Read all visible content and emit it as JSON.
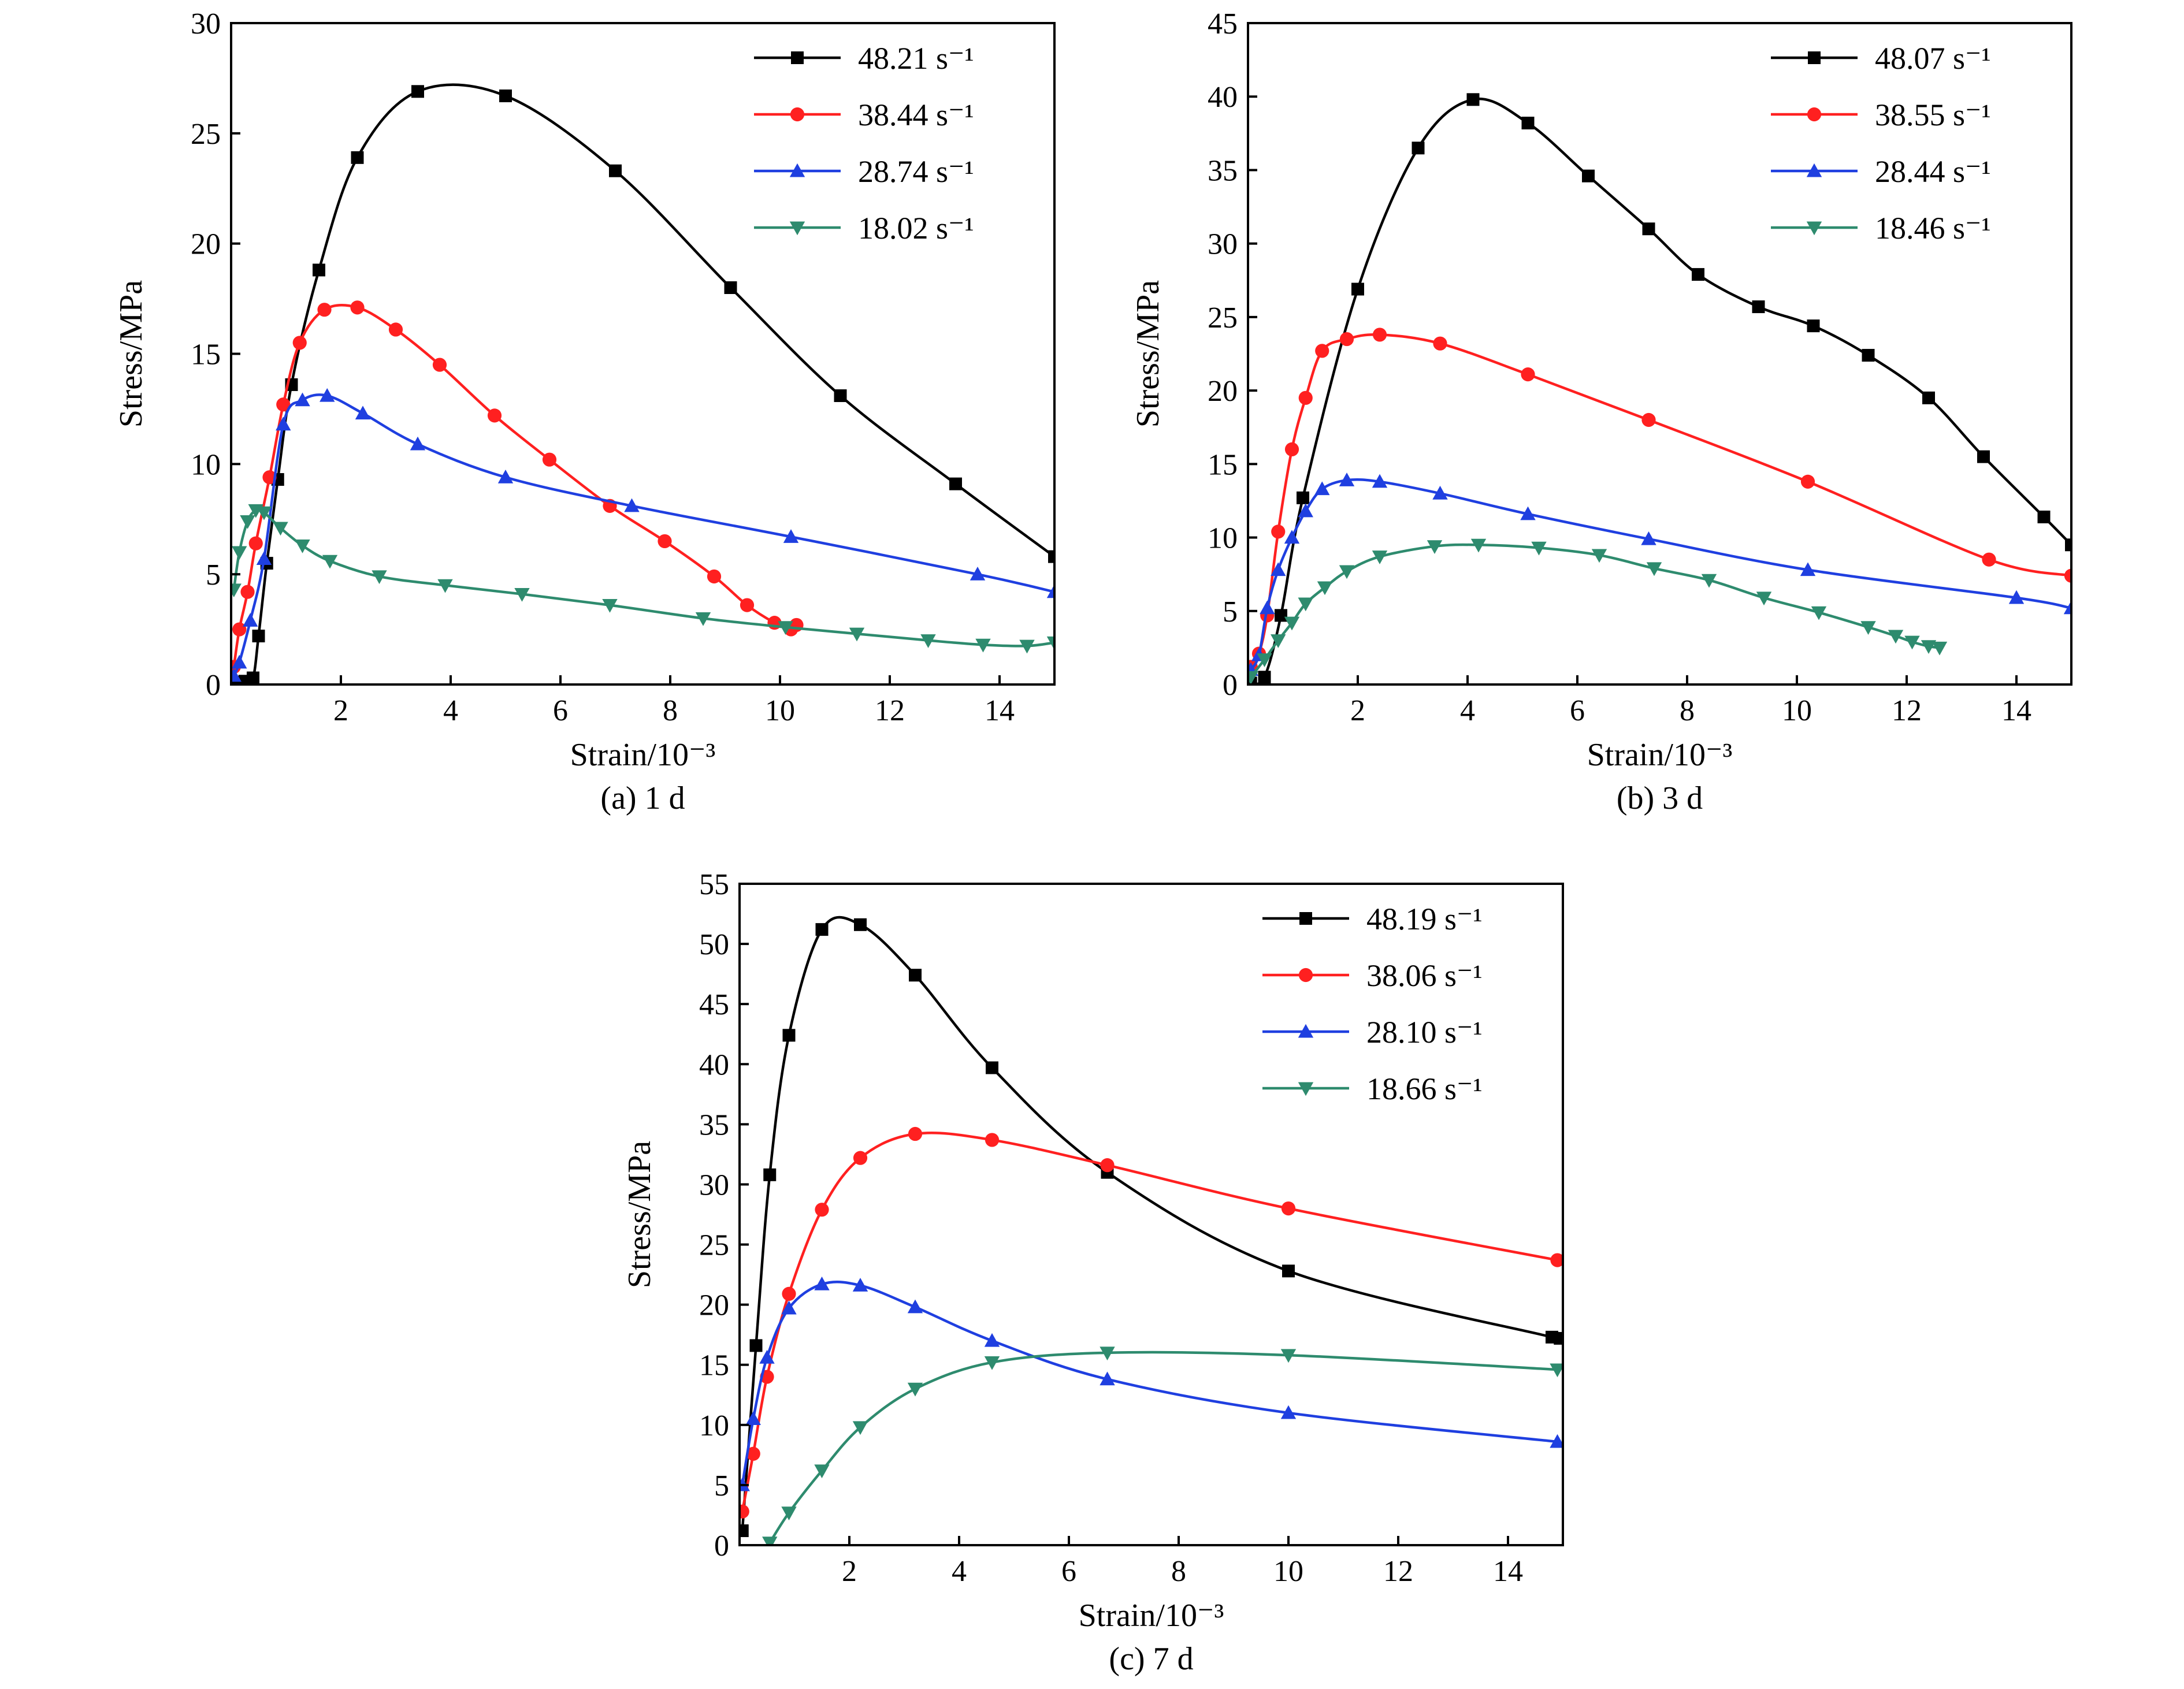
{
  "chart_data": [
    {
      "type": "line",
      "caption": "(a) 1 d",
      "xlabel": "Strain/10⁻³",
      "ylabel": "Stress/MPa",
      "xlim": [
        0,
        15
      ],
      "ylim": [
        0,
        30
      ],
      "xticks": [
        2,
        4,
        6,
        8,
        10,
        12,
        14
      ],
      "yticks": [
        0,
        5,
        10,
        15,
        20,
        25,
        30
      ],
      "legend_position": "top-right",
      "series": [
        {
          "name": "48.21 s⁻¹",
          "color": "#000000",
          "marker": "square",
          "x": [
            0.05,
            0.25,
            0.4,
            0.5,
            0.65,
            0.85,
            1.1,
            1.6,
            2.3,
            3.4,
            5.0,
            7.0,
            9.1,
            11.1,
            13.2,
            15.0
          ],
          "y": [
            0.1,
            0.15,
            0.3,
            2.2,
            5.5,
            9.3,
            13.6,
            18.8,
            23.9,
            26.9,
            26.7,
            23.3,
            18.0,
            13.1,
            9.1,
            5.8
          ]
        },
        {
          "name": "38.44 s⁻¹",
          "color": "#ff2020",
          "marker": "circle",
          "x": [
            0.05,
            0.15,
            0.3,
            0.45,
            0.7,
            0.95,
            1.25,
            1.7,
            2.3,
            3.0,
            3.8,
            4.8,
            5.8,
            6.9,
            7.9,
            8.8,
            9.4,
            9.9,
            10.2,
            10.3
          ],
          "y": [
            0.8,
            2.5,
            4.2,
            6.4,
            9.4,
            12.7,
            15.5,
            17.0,
            17.1,
            16.1,
            14.5,
            12.2,
            10.2,
            8.1,
            6.5,
            4.9,
            3.6,
            2.8,
            2.5,
            2.7
          ]
        },
        {
          "name": "28.74 s⁻¹",
          "color": "#1f3fe0",
          "marker": "triangle-up",
          "x": [
            0.05,
            0.15,
            0.35,
            0.6,
            0.95,
            1.3,
            1.75,
            2.4,
            3.4,
            5.0,
            7.3,
            10.2,
            13.6,
            15.0
          ],
          "y": [
            0.4,
            1.0,
            2.9,
            5.7,
            11.8,
            12.9,
            13.1,
            12.3,
            10.9,
            9.4,
            8.1,
            6.7,
            5.0,
            4.2
          ]
        },
        {
          "name": "18.02 s⁻¹",
          "color": "#2e8b6e",
          "marker": "triangle-down",
          "x": [
            0.05,
            0.15,
            0.3,
            0.45,
            0.6,
            0.9,
            1.3,
            1.8,
            2.7,
            3.9,
            5.3,
            6.9,
            8.6,
            10.1,
            11.4,
            12.7,
            13.7,
            14.5,
            15.0
          ],
          "y": [
            4.3,
            6.0,
            7.4,
            7.9,
            7.8,
            7.1,
            6.3,
            5.6,
            4.9,
            4.5,
            4.1,
            3.6,
            3.0,
            2.6,
            2.3,
            2.0,
            1.8,
            1.75,
            1.9
          ]
        }
      ]
    },
    {
      "type": "line",
      "caption": "(b) 3 d",
      "xlabel": "Strain/10⁻³",
      "ylabel": "Stress/MPa",
      "xlim": [
        0,
        15
      ],
      "ylim": [
        0,
        45
      ],
      "xticks": [
        2,
        4,
        6,
        8,
        10,
        12,
        14
      ],
      "yticks": [
        0,
        5,
        10,
        15,
        20,
        25,
        30,
        35,
        40,
        45
      ],
      "legend_position": "top-right",
      "series": [
        {
          "name": "48.07 s⁻¹",
          "color": "#000000",
          "marker": "square",
          "x": [
            0.05,
            0.3,
            0.6,
            1.0,
            2.0,
            3.1,
            4.1,
            5.1,
            6.2,
            7.3,
            8.2,
            9.3,
            10.3,
            11.3,
            12.4,
            13.4,
            14.5,
            15.0
          ],
          "y": [
            0.1,
            0.5,
            4.7,
            12.7,
            26.9,
            36.5,
            39.8,
            38.2,
            34.6,
            31.0,
            27.9,
            25.7,
            24.4,
            22.4,
            19.5,
            15.5,
            11.4,
            9.5
          ]
        },
        {
          "name": "38.55 s⁻¹",
          "color": "#ff2020",
          "marker": "circle",
          "x": [
            0.05,
            0.2,
            0.35,
            0.55,
            0.8,
            1.05,
            1.35,
            1.8,
            2.4,
            3.5,
            5.1,
            7.3,
            10.2,
            13.5,
            15.0
          ],
          "y": [
            1.2,
            2.1,
            4.7,
            10.4,
            16.0,
            19.5,
            22.7,
            23.5,
            23.8,
            23.2,
            21.1,
            18.0,
            13.8,
            8.5,
            7.4
          ]
        },
        {
          "name": "28.44 s⁻¹",
          "color": "#1f3fe0",
          "marker": "triangle-up",
          "x": [
            0.05,
            0.2,
            0.35,
            0.55,
            0.8,
            1.05,
            1.35,
            1.8,
            2.4,
            3.5,
            5.1,
            7.3,
            10.2,
            14.0,
            15.0
          ],
          "y": [
            1.0,
            2.0,
            5.2,
            7.8,
            10.0,
            11.8,
            13.3,
            13.9,
            13.8,
            13.0,
            11.6,
            9.9,
            7.8,
            5.9,
            5.2
          ]
        },
        {
          "name": "18.46 s⁻¹",
          "color": "#2e8b6e",
          "marker": "triangle-down",
          "x": [
            0.05,
            0.3,
            0.55,
            0.8,
            1.05,
            1.4,
            1.8,
            2.4,
            3.4,
            4.2,
            5.3,
            6.4,
            7.4,
            8.4,
            9.4,
            10.4,
            11.3,
            11.8,
            12.1,
            12.4,
            12.6
          ],
          "y": [
            0.5,
            1.7,
            3.0,
            4.2,
            5.5,
            6.6,
            7.7,
            8.7,
            9.4,
            9.5,
            9.3,
            8.8,
            7.9,
            7.1,
            5.9,
            4.9,
            3.9,
            3.3,
            2.9,
            2.6,
            2.5
          ]
        }
      ]
    },
    {
      "type": "line",
      "caption": "(c) 7 d",
      "xlabel": "Strain/10⁻³",
      "ylabel": "Stress/MPa",
      "xlim": [
        0,
        15
      ],
      "ylim": [
        0,
        55
      ],
      "xticks": [
        2,
        4,
        6,
        8,
        10,
        12,
        14
      ],
      "yticks": [
        0,
        5,
        10,
        15,
        20,
        25,
        30,
        35,
        40,
        45,
        50,
        55
      ],
      "legend_position": "top-right",
      "series": [
        {
          "name": "48.19 s⁻¹",
          "color": "#000000",
          "marker": "square",
          "x": [
            0.05,
            0.3,
            0.55,
            0.9,
            1.5,
            2.2,
            3.2,
            4.6,
            6.7,
            10.0,
            14.8,
            14.95
          ],
          "y": [
            1.2,
            16.6,
            30.8,
            42.4,
            51.2,
            51.6,
            47.4,
            39.7,
            31.0,
            22.8,
            17.3,
            17.2
          ]
        },
        {
          "name": "38.06 s⁻¹",
          "color": "#ff2020",
          "marker": "circle",
          "x": [
            0.05,
            0.25,
            0.5,
            0.9,
            1.5,
            2.2,
            3.2,
            4.6,
            6.7,
            10.0,
            14.9
          ],
          "y": [
            2.8,
            7.6,
            14.0,
            20.9,
            27.9,
            32.2,
            34.2,
            33.7,
            31.6,
            28.0,
            23.7
          ]
        },
        {
          "name": "28.10 s⁻¹",
          "color": "#1f3fe0",
          "marker": "triangle-up",
          "x": [
            0.05,
            0.25,
            0.5,
            0.9,
            1.5,
            2.2,
            3.2,
            4.6,
            6.7,
            10.0,
            14.9
          ],
          "y": [
            5.0,
            10.5,
            15.6,
            19.7,
            21.7,
            21.6,
            19.8,
            17.0,
            13.8,
            11.0,
            8.6
          ]
        },
        {
          "name": "18.66 s⁻¹",
          "color": "#2e8b6e",
          "marker": "triangle-down",
          "x": [
            0.55,
            0.9,
            1.5,
            2.2,
            3.2,
            4.6,
            6.7,
            10.0,
            14.9
          ],
          "y": [
            0.2,
            2.7,
            6.2,
            9.8,
            13.0,
            15.2,
            16.0,
            15.8,
            14.6
          ]
        }
      ]
    }
  ]
}
